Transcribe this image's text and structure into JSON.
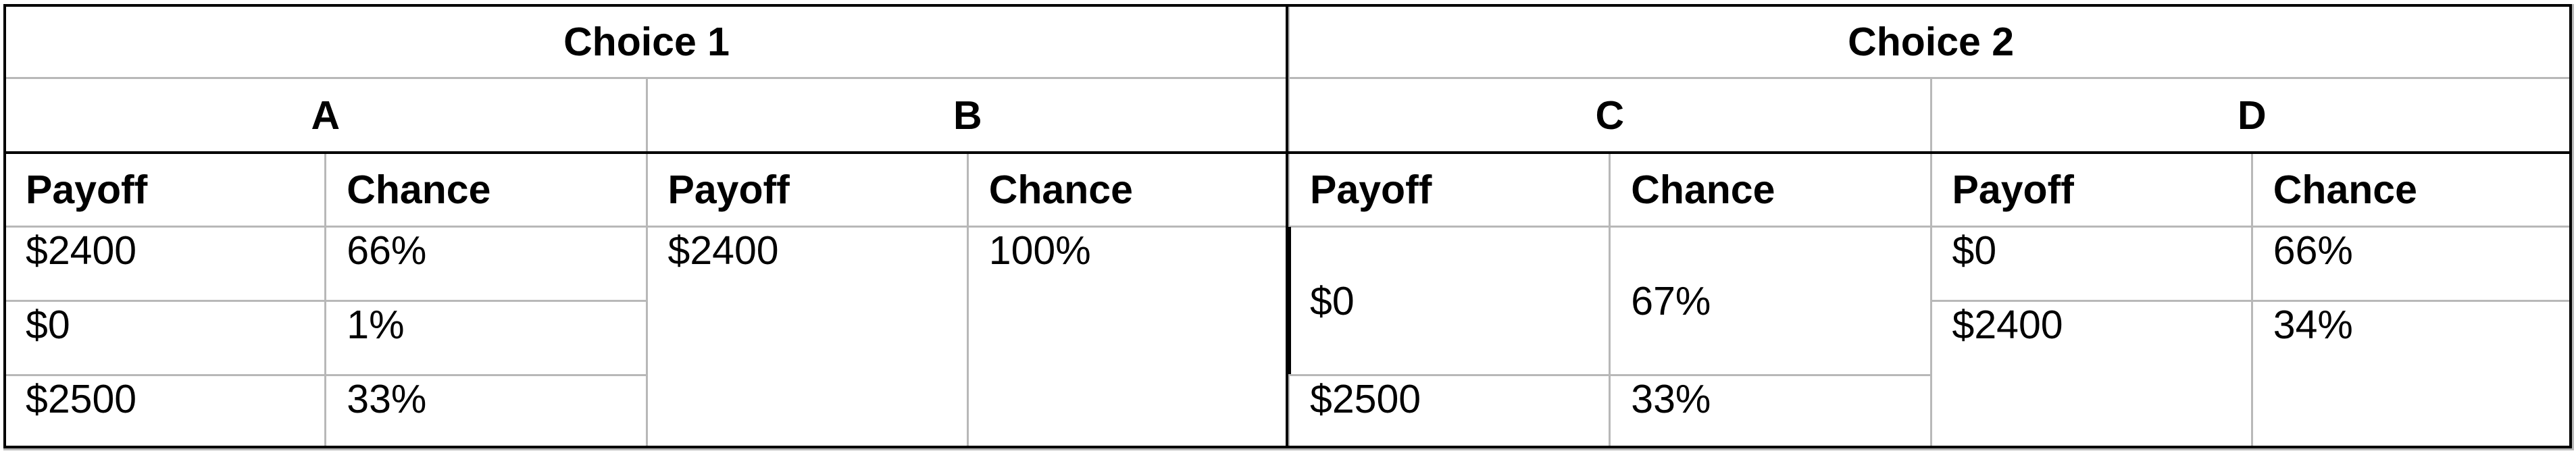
{
  "table": {
    "groups": [
      "Choice 1",
      "Choice 2"
    ],
    "options": [
      "A",
      "B",
      "C",
      "D"
    ],
    "column_headers": {
      "payoff": "Payoff",
      "chance": "Chance"
    },
    "A": {
      "rows": [
        {
          "payoff": "$2400",
          "chance": "66%"
        },
        {
          "payoff": "$0",
          "chance": "1%"
        },
        {
          "payoff": "$2500",
          "chance": "33%"
        }
      ]
    },
    "B": {
      "rows": [
        {
          "payoff": "$2400",
          "chance": "100%"
        }
      ]
    },
    "C": {
      "rows": [
        {
          "payoff": "$0",
          "chance": "67%"
        },
        {
          "payoff": "$2500",
          "chance": "33%"
        }
      ]
    },
    "D": {
      "rows": [
        {
          "payoff": "$0",
          "chance": "66%"
        },
        {
          "payoff": "$2400",
          "chance": "34%"
        }
      ]
    }
  }
}
